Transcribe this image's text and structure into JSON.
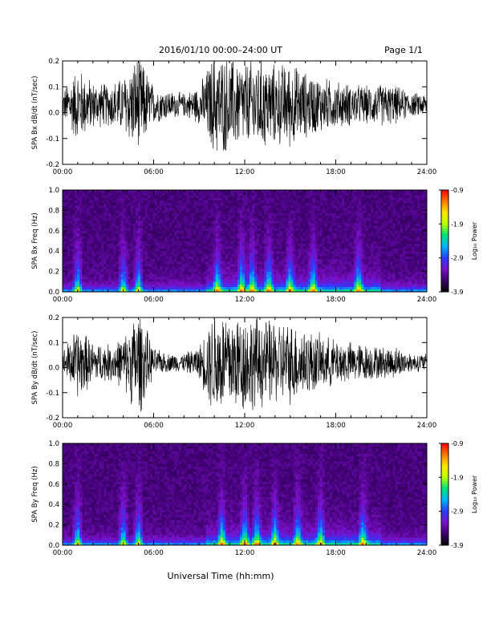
{
  "header": {
    "title": "2016/01/10   00:00–24:00 UT",
    "page": "Page 1/1"
  },
  "footer": {
    "xlabel": "Universal Time (hh:mm)"
  },
  "colors": {
    "trace": "#000000",
    "background": "#ffffff",
    "colormap": [
      "#000000",
      "#3b006a",
      "#7a10c8",
      "#2a3cff",
      "#00b4ff",
      "#00e07a",
      "#b8ff00",
      "#ffe600",
      "#ff7a00",
      "#ff0000"
    ]
  },
  "chart_data": [
    {
      "type": "line",
      "ylabel": "SPA Bx dB/dt (nT/sec)",
      "xlim": [
        "00:00",
        "24:00"
      ],
      "ylim": [
        -0.2,
        0.2
      ],
      "xticks": [
        "00:00",
        "06:00",
        "12:00",
        "18:00",
        "24:00"
      ],
      "yticks": [
        "-0.2",
        "-0.1",
        "0.0",
        "0.1",
        "0.2"
      ],
      "activity_hours": [
        0,
        1,
        2,
        3,
        4,
        5,
        6,
        7,
        8,
        9,
        10,
        11,
        12,
        13,
        14,
        15,
        16,
        17,
        18,
        19,
        20,
        21,
        22,
        23,
        24
      ],
      "activity_amplitude": [
        0.06,
        0.16,
        0.1,
        0.09,
        0.12,
        0.22,
        0.08,
        0.06,
        0.05,
        0.08,
        0.22,
        0.2,
        0.18,
        0.2,
        0.17,
        0.18,
        0.14,
        0.12,
        0.1,
        0.09,
        0.08,
        0.09,
        0.08,
        0.05,
        0.05
      ],
      "mean_offset": 0.03
    },
    {
      "type": "heatmap",
      "ylabel": "SPA Bx Freq (Hz)",
      "xlim": [
        "00:00",
        "24:00"
      ],
      "ylim": [
        0.0,
        1.0
      ],
      "xticks": [
        "00:00",
        "06:00",
        "12:00",
        "18:00",
        "24:00"
      ],
      "yticks": [
        "0.0",
        "0.2",
        "0.4",
        "0.6",
        "0.8",
        "1.0"
      ],
      "colorbar": {
        "label": "Log₁₀ Power",
        "ticks": [
          "-0.9",
          "-1.9",
          "-2.9",
          "-3.9"
        ],
        "range": [
          -3.9,
          -0.9
        ]
      },
      "hot_hours": [
        1.0,
        4.0,
        5.0,
        10.2,
        11.8,
        12.5,
        13.6,
        15.0,
        16.5,
        19.5
      ],
      "broadband_level_log10": -3.6
    },
    {
      "type": "line",
      "ylabel": "SPA By dB/dt (nT/sec)",
      "xlim": [
        "00:00",
        "24:00"
      ],
      "ylim": [
        -0.2,
        0.2
      ],
      "xticks": [
        "00:00",
        "06:00",
        "12:00",
        "18:00",
        "24:00"
      ],
      "yticks": [
        "-0.2",
        "-0.1",
        "0.0",
        "0.1",
        "0.2"
      ],
      "activity_hours": [
        0,
        1,
        2,
        3,
        4,
        5,
        6,
        7,
        8,
        9,
        10,
        11,
        12,
        13,
        14,
        15,
        16,
        17,
        18,
        19,
        20,
        21,
        22,
        23,
        24
      ],
      "activity_amplitude": [
        0.05,
        0.16,
        0.09,
        0.08,
        0.11,
        0.24,
        0.06,
        0.04,
        0.04,
        0.07,
        0.24,
        0.22,
        0.22,
        0.2,
        0.18,
        0.18,
        0.15,
        0.12,
        0.1,
        0.09,
        0.08,
        0.07,
        0.07,
        0.04,
        0.04
      ],
      "mean_offset": 0.02
    },
    {
      "type": "heatmap",
      "ylabel": "SPA By Freq (Hz)",
      "xlim": [
        "00:00",
        "24:00"
      ],
      "ylim": [
        0.0,
        1.0
      ],
      "xticks": [
        "00:00",
        "06:00",
        "12:00",
        "18:00",
        "24:00"
      ],
      "yticks": [
        "0.0",
        "0.2",
        "0.4",
        "0.6",
        "0.8",
        "1.0"
      ],
      "colorbar": {
        "label": "Log₁₀ Power",
        "ticks": [
          "-0.9",
          "-1.9",
          "-2.9",
          "-3.9"
        ],
        "range": [
          -3.9,
          -0.9
        ]
      },
      "hot_hours": [
        1.0,
        4.0,
        5.0,
        10.5,
        12.0,
        12.8,
        14.0,
        15.5,
        17.0,
        19.8
      ],
      "broadband_level_log10": -3.6
    }
  ]
}
